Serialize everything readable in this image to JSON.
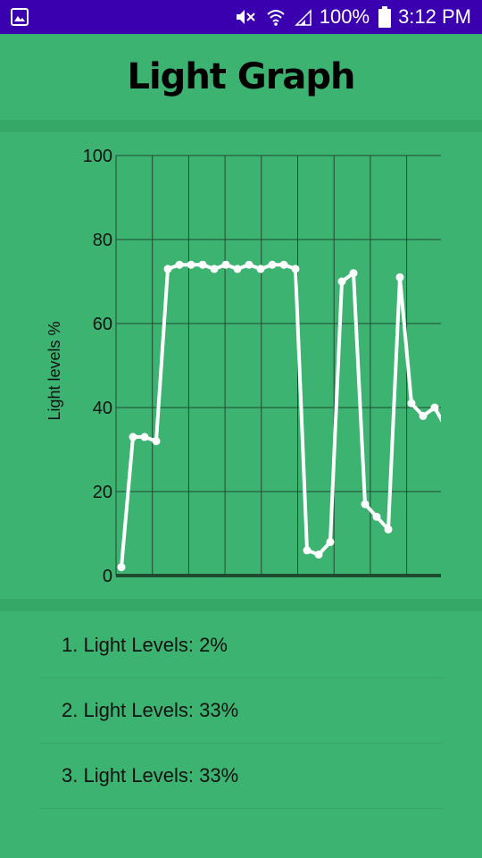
{
  "status_bar": {
    "battery": "100%",
    "time": "3:12 PM",
    "icons": [
      "image-icon",
      "mute-icon",
      "wifi-icon",
      "signal-icon",
      "battery-icon"
    ]
  },
  "header": {
    "title": "Light Graph"
  },
  "chart_data": {
    "type": "line",
    "ylabel": "Light levels %",
    "xlabel": "",
    "ylim": [
      0,
      100
    ],
    "yticks": [
      "0",
      "20",
      "40",
      "60",
      "80",
      "100"
    ],
    "grid": true,
    "line_color": "#ffffff",
    "x": [
      0,
      1,
      2,
      3,
      4,
      5,
      6,
      7,
      8,
      9,
      10,
      11,
      12,
      13,
      14,
      15,
      16,
      17,
      18,
      19,
      20,
      21,
      22,
      23,
      24,
      25,
      26,
      27,
      28
    ],
    "values": [
      2,
      33,
      33,
      32,
      73,
      74,
      74,
      74,
      73,
      74,
      73,
      74,
      73,
      74,
      74,
      73,
      6,
      5,
      8,
      70,
      72,
      17,
      14,
      11,
      71,
      41,
      38,
      40,
      35
    ]
  },
  "list": {
    "items": [
      {
        "label": "1. Light Levels: 2%"
      },
      {
        "label": "2. Light Levels: 33%"
      },
      {
        "label": "3. Light Levels: 33%"
      }
    ]
  }
}
